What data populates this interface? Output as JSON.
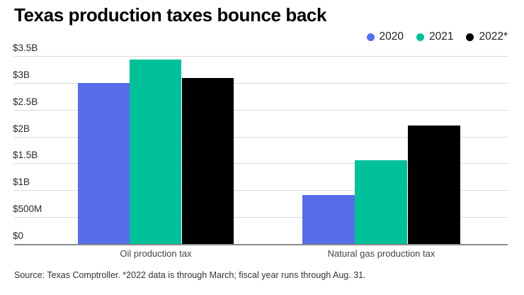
{
  "title": "Texas production taxes bounce back",
  "footer": {
    "source": "Source: Texas Comptroller. *2022 data is through March; fiscal year runs through Aug. 31."
  },
  "colors": {
    "background": "#ffffff",
    "grid": "#d9d9d9",
    "baseline": "#8a8a8a",
    "series_2020": "#566de8",
    "series_2021": "#00c09a",
    "series_2022": "#000000"
  },
  "chart_data": {
    "type": "bar",
    "title": "Texas production taxes bounce back",
    "unit": "USD billions",
    "categories": [
      "Oil production tax",
      "Natural gas production tax"
    ],
    "series": [
      {
        "name": "2020",
        "color": "#566de8",
        "values": [
          3.0,
          0.91
        ]
      },
      {
        "name": "2021",
        "color": "#00c09a",
        "values": [
          3.43,
          1.56
        ]
      },
      {
        "name": "2022*",
        "color": "#000000",
        "values": [
          3.09,
          2.21
        ]
      }
    ],
    "xlabel": "",
    "ylabel": "",
    "ylim": [
      0,
      3.5
    ],
    "y_tick_values": [
      0,
      0.5,
      1,
      1.5,
      2,
      2.5,
      3,
      3.5
    ],
    "y_tick_labels": [
      "$0",
      "$500M",
      "$1B",
      "$1.5B",
      "$2B",
      "$2.5B",
      "$3B",
      "$3.5B"
    ],
    "grid": true,
    "legend_position": "top-right"
  }
}
